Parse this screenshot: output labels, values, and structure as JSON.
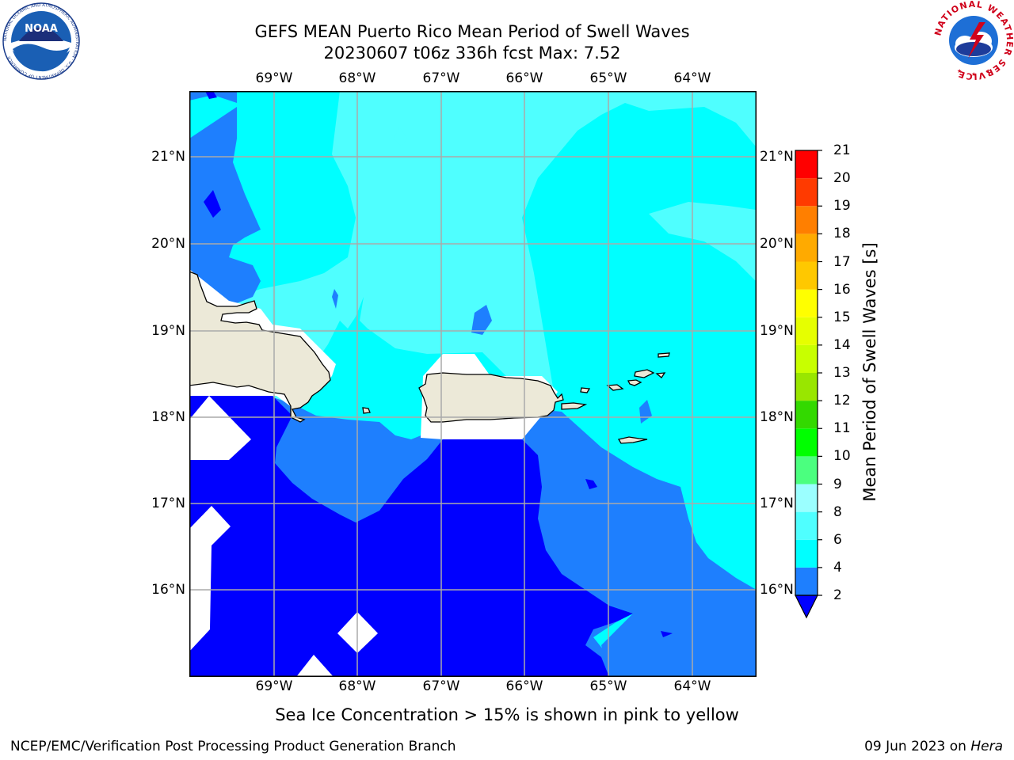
{
  "title": {
    "line1": "GEFS MEAN Puerto Rico Mean Period of Swell Waves",
    "line2": "20230607 t06z 336h fcst   Max: 7.52"
  },
  "axes": {
    "lon_ticks": [
      "69°W",
      "68°W",
      "67°W",
      "66°W",
      "65°W",
      "64°W"
    ],
    "lat_ticks": [
      "21°N",
      "20°N",
      "19°N",
      "18°N",
      "17°N",
      "16°N"
    ],
    "lon_range": [
      -70.0,
      -63.25
    ],
    "lat_range": [
      15.0,
      21.75
    ],
    "grid": true
  },
  "colorbar": {
    "label": "Mean Period of Swell Waves [s]",
    "levels": [
      "2",
      "4",
      "6",
      "8",
      "9",
      "10",
      "11",
      "12",
      "13",
      "14",
      "15",
      "16",
      "17",
      "18",
      "19",
      "20",
      "21"
    ],
    "colors": [
      "#0000ff",
      "#1e7ffe",
      "#00ffff",
      "#4fffff",
      "#9bffff",
      "#4bff7f",
      "#00ff00",
      "#33d900",
      "#99e600",
      "#c8ff00",
      "#e6ff00",
      "#ffff00",
      "#ffc800",
      "#ffaa00",
      "#ff7f00",
      "#ff3a00",
      "#ff0000"
    ],
    "extend": "min"
  },
  "map": {
    "region": "Puerto Rico",
    "landmasses": [
      "Hispaniola",
      "Puerto Rico",
      "Virgin Islands",
      "St. Croix",
      "Mona Island"
    ]
  },
  "footer": {
    "note": "Sea Ice Concentration > 15% is shown in pink to yellow",
    "left": "NCEP/EMC/Verification Post Processing Product Generation Branch",
    "date": "09 Jun 2023 on ",
    "host": "Hera"
  },
  "logos": {
    "noaa_text": "NOAA",
    "noaa_ring": "NATIONAL OCEANIC AND ATMOSPHERIC ADMINISTRATION · U.S. DEPARTMENT OF COMMERCE",
    "nws_ring": "NATIONAL WEATHER SERVICE"
  }
}
